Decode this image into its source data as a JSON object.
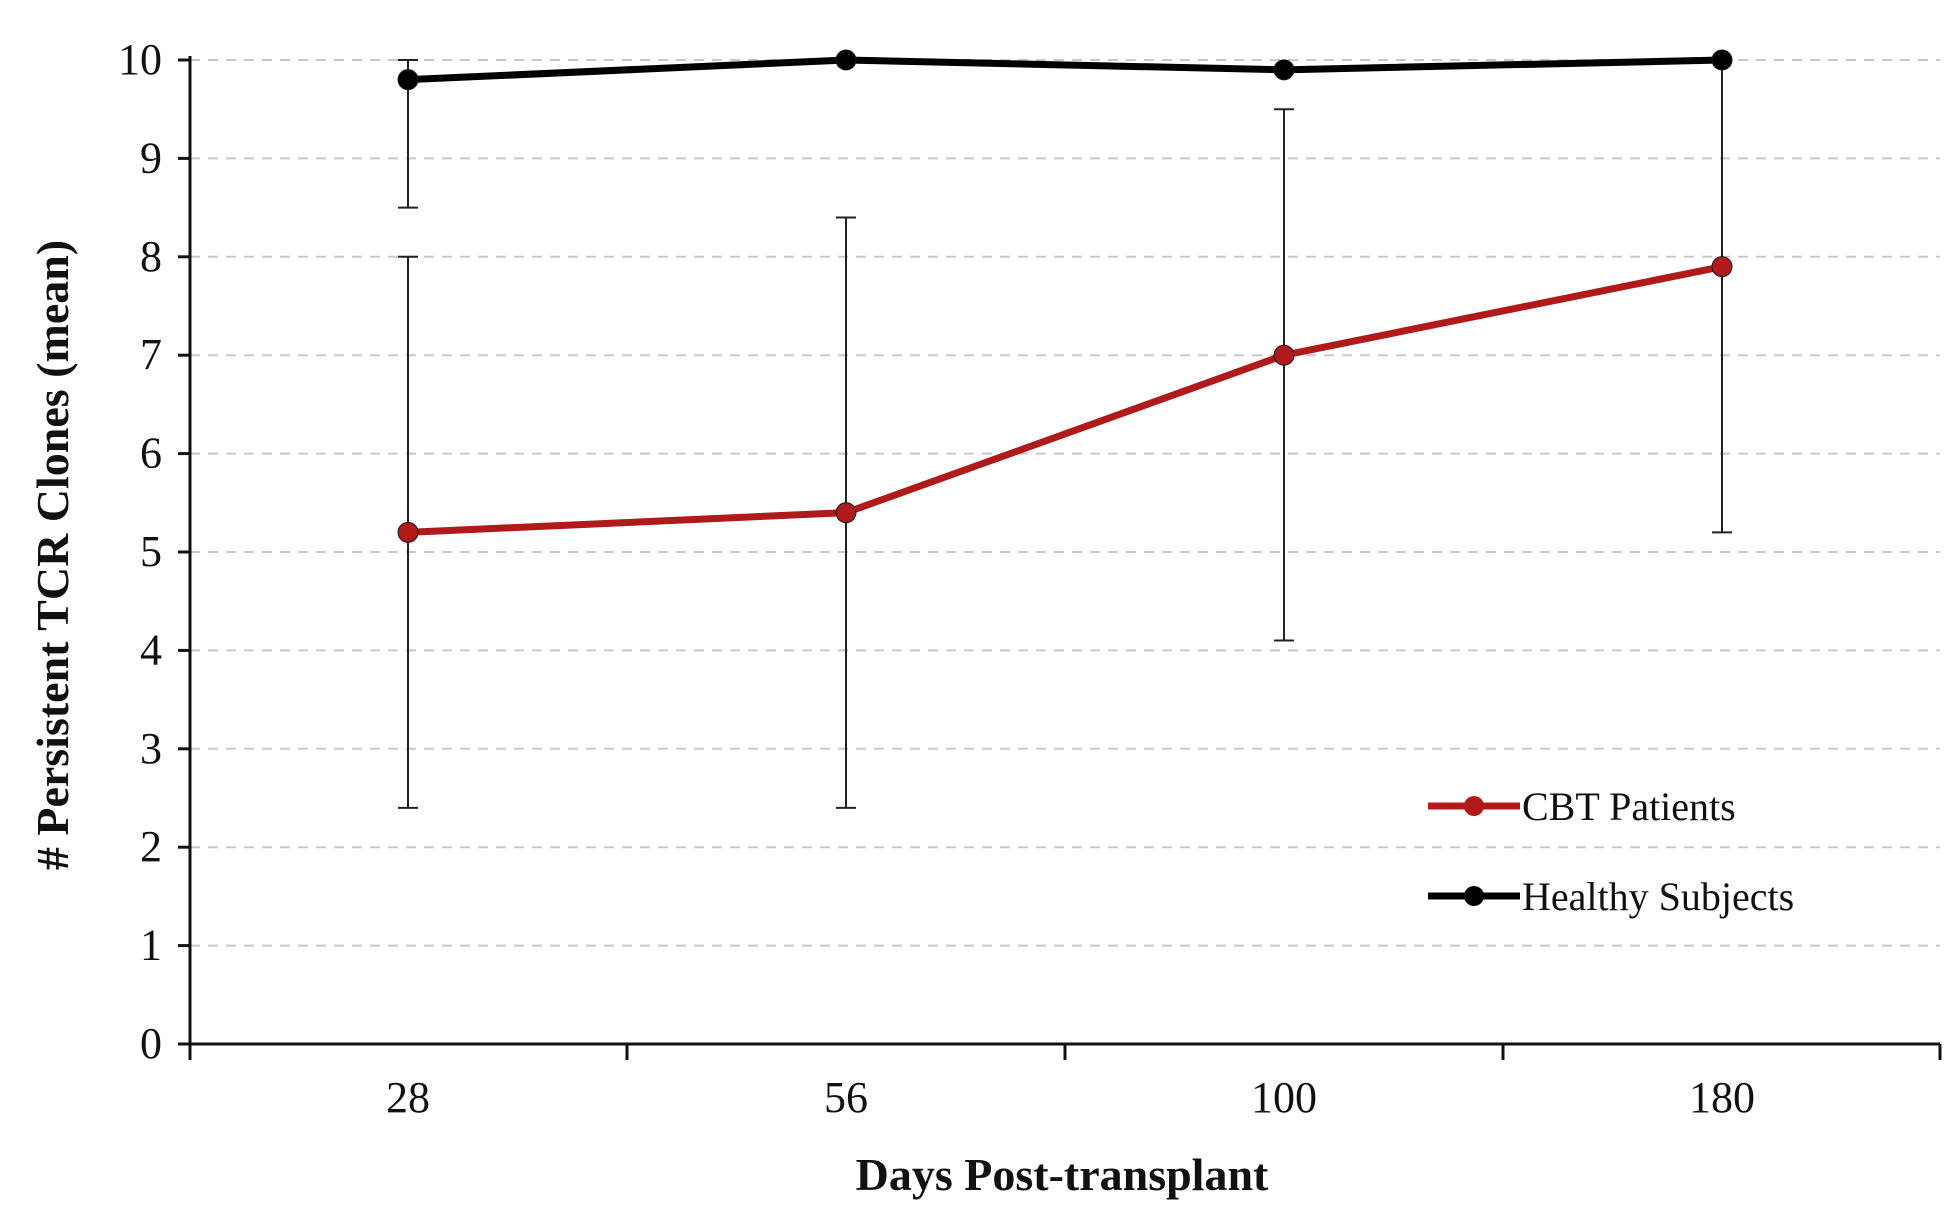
{
  "chart_data": {
    "type": "line",
    "title": "",
    "xlabel": "Days Post-transplant",
    "ylabel": "# Persistent TCR Clones (mean)",
    "categories": [
      "28",
      "56",
      "100",
      "180"
    ],
    "ylim": [
      0,
      10
    ],
    "yticks": [
      "0",
      "1",
      "2",
      "3",
      "4",
      "5",
      "6",
      "7",
      "8",
      "9",
      "10"
    ],
    "grid": "horizontal-dashed",
    "legend_position": "bottom-right",
    "series": [
      {
        "name": "CBT Patients",
        "color": "#b01a1a",
        "values": [
          5.2,
          5.4,
          7.0,
          7.9
        ],
        "error_low": [
          2.4,
          2.4,
          4.1,
          5.2
        ],
        "error_high": [
          8.0,
          8.4,
          9.5,
          10.0
        ]
      },
      {
        "name": "Healthy Subjects",
        "color": "#000000",
        "values": [
          9.8,
          10.0,
          9.9,
          10.0
        ],
        "error_low": [
          8.5,
          10.0,
          9.9,
          10.0
        ],
        "error_high": [
          10.0,
          10.0,
          9.9,
          10.0
        ]
      }
    ]
  }
}
